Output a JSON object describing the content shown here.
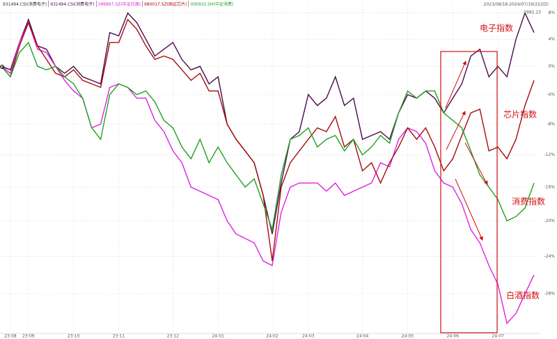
{
  "chart_data": {
    "type": "line",
    "subject": "931494.CSI(消费电子)",
    "date_range": "2023/08/18-2024/07/19(222日)",
    "log_scale": true,
    "grid": true,
    "categories": [
      null,
      "23-08",
      null,
      "23-09",
      null,
      null,
      null,
      null,
      "23-10",
      null,
      null,
      null,
      null,
      "23-11",
      null,
      null,
      null,
      null,
      null,
      "23-12",
      null,
      null,
      null,
      null,
      "24-01",
      null,
      null,
      null,
      null,
      null,
      "24-02",
      null,
      null,
      null,
      "24-03",
      null,
      null,
      null,
      null,
      null,
      "24-04",
      null,
      null,
      null,
      null,
      "24-05",
      null,
      null,
      null,
      null,
      "24-06",
      null,
      null,
      null,
      null,
      "24-07",
      null,
      null,
      null,
      null
    ],
    "ylim": [
      -32,
      9.5
    ],
    "yticks": [
      {
        "value": 8,
        "label": "8%"
      },
      {
        "value": 4,
        "label": "4%"
      },
      {
        "value": 0,
        "label": "0%"
      },
      {
        "value": -4,
        "label": "-4%"
      },
      {
        "value": -8,
        "label": "-8%"
      },
      {
        "value": -12,
        "label": "-12%"
      },
      {
        "value": -16,
        "label": "-16%"
      },
      {
        "value": -20,
        "label": "-20%"
      },
      {
        "value": -24,
        "label": "-24%"
      },
      {
        "value": -28,
        "label": "-28%"
      }
    ],
    "series": [
      {
        "name": "931494.CSI(消费电子)",
        "color": "#4b0a4b",
        "values": [
          0,
          -0.5,
          3.5,
          7,
          3,
          2.5,
          0,
          -1,
          0,
          -1.5,
          -2,
          -2.5,
          5,
          4.5,
          8,
          6.5,
          4,
          1.5,
          2.5,
          3.5,
          1,
          -0.5,
          0,
          -2.5,
          -1.5,
          -8,
          -10,
          -11.5,
          -13,
          -17,
          -21.5,
          -15.5,
          -10,
          -9,
          -4,
          -5.5,
          -4.5,
          -1.5,
          -5.5,
          -4.5,
          -10,
          -9.5,
          -9,
          -10,
          -6.5,
          -4,
          -4.5,
          -3.5,
          -4.5,
          -6.5,
          -4.5,
          -2.5,
          1.5,
          2.5,
          -1.5,
          0,
          -1.5,
          4,
          8,
          5
        ]
      },
      {
        "name": "399997.SZ(中证白酒)",
        "color": "#e020e0",
        "values": [
          0,
          -1,
          3.5,
          6.5,
          2.5,
          2,
          0,
          -2,
          -3.5,
          -4.5,
          -8.5,
          -8,
          -3,
          -2.5,
          -3,
          -4.5,
          -4.5,
          -7.5,
          -9,
          -11.5,
          -13,
          -16,
          -16.5,
          -17,
          -17.5,
          -20,
          -21.5,
          -22,
          -22.5,
          -24.5,
          -25,
          -19,
          -16,
          -15.5,
          -15.5,
          -15.5,
          -16.5,
          -15.5,
          -17,
          -16.5,
          -16,
          -15.5,
          -13,
          -13.5,
          -10,
          -8.5,
          -9,
          -10.5,
          -14,
          -15.5,
          -16,
          -18,
          -21,
          -22.5,
          -25,
          -27,
          -31,
          -30,
          -28,
          -26
        ]
      },
      {
        "name": "980017.SZ(国证芯片)",
        "color": "#a30d0d",
        "values": [
          0,
          -1.5,
          3,
          6.5,
          3,
          1,
          -1,
          -1.5,
          -0.5,
          -2,
          -2.5,
          -3,
          3.5,
          3.5,
          7,
          5.5,
          3,
          1,
          1.5,
          1,
          -0.5,
          -2,
          -1,
          -3.5,
          -3.5,
          -8,
          -10,
          -11.5,
          -13,
          -17,
          -24.5,
          -16,
          -13,
          -11.5,
          -10,
          -8.5,
          -9,
          -7,
          -11,
          -10,
          -14,
          -13,
          -15.5,
          -13,
          -11,
          -8.5,
          -10,
          -8.5,
          -11,
          -14,
          -12.5,
          -9.5,
          -6.5,
          -6,
          -11.5,
          -11,
          -12.5,
          -10,
          -5.5,
          -2
        ]
      },
      {
        "name": "000932.SH(中证消费)",
        "color": "#22a022",
        "values": [
          0,
          -1.5,
          2,
          3.5,
          0,
          -0.5,
          0,
          -1.5,
          -2.5,
          -4.5,
          -8.5,
          -10,
          -4,
          -2.5,
          -3,
          -4,
          -3.5,
          -5,
          -7.5,
          -8.5,
          -11,
          -12.5,
          -10,
          -13,
          -11,
          -13,
          -14.5,
          -16,
          -15,
          -18,
          -21,
          -14.5,
          -10,
          -9.5,
          -8.5,
          -11,
          -10,
          -9.5,
          -11.5,
          -10,
          -12,
          -11,
          -9.5,
          -10.5,
          -6.5,
          -3.5,
          -4.5,
          -3.5,
          -3.5,
          -6.5,
          -7.5,
          -8.5,
          -11.5,
          -14.5,
          -16,
          -17.5,
          -20,
          -19.5,
          -18.5,
          -15.5
        ]
      }
    ],
    "annotations": [
      "电子指数",
      "白酒指数",
      "芯片指数",
      "消费指数",
      "2992.13"
    ]
  }
}
